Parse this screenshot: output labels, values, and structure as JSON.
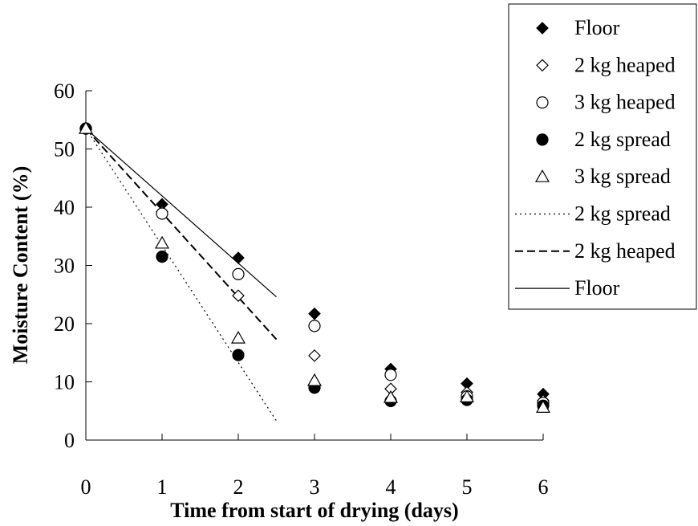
{
  "chart_data": {
    "type": "scatter",
    "title": "",
    "xlabel": "Time from start of drying (days)",
    "ylabel": "Moisture Content (%)",
    "xlim": [
      0,
      6
    ],
    "ylim": [
      0,
      65
    ],
    "xticks": [
      "0",
      "1",
      "2",
      "3",
      "4",
      "5",
      "6"
    ],
    "yticks": [
      "0",
      "10",
      "20",
      "30",
      "40",
      "50",
      "60"
    ],
    "grid": false,
    "legend_position": "top-right",
    "series": [
      {
        "name": "Floor",
        "kind": "points",
        "marker": "diamond-filled",
        "points": [
          [
            0,
            53.5
          ],
          [
            1,
            40.5
          ],
          [
            2,
            31.3
          ],
          [
            3,
            21.7
          ],
          [
            4,
            12.2
          ],
          [
            5,
            9.7
          ],
          [
            6,
            7.9
          ]
        ]
      },
      {
        "name": "2 kg heaped",
        "kind": "points",
        "marker": "diamond-open",
        "points": [
          [
            0,
            53.5
          ],
          [
            1,
            39.2
          ],
          [
            2,
            24.8
          ],
          [
            3,
            14.5
          ],
          [
            4,
            8.8
          ],
          [
            5,
            8.2
          ],
          [
            6,
            6.8
          ]
        ]
      },
      {
        "name": "3 kg heaped",
        "kind": "points",
        "marker": "circle-open",
        "points": [
          [
            0,
            53.5
          ],
          [
            1,
            38.9
          ],
          [
            2,
            28.5
          ],
          [
            3,
            19.6
          ],
          [
            4,
            11.2
          ],
          [
            5,
            7.5
          ],
          [
            6,
            6.4
          ]
        ]
      },
      {
        "name": "2 kg spread",
        "kind": "points",
        "marker": "circle-filled",
        "points": [
          [
            0,
            53.5
          ],
          [
            1,
            31.5
          ],
          [
            2,
            14.6
          ],
          [
            3,
            9.0
          ],
          [
            4,
            6.7
          ],
          [
            5,
            6.9
          ],
          [
            6,
            5.9
          ]
        ]
      },
      {
        "name": "3 kg spread",
        "kind": "points",
        "marker": "triangle-open",
        "points": [
          [
            0,
            53.5
          ],
          [
            1,
            33.8
          ],
          [
            2,
            17.5
          ],
          [
            3,
            10.2
          ],
          [
            4,
            7.3
          ],
          [
            5,
            7.4
          ],
          [
            6,
            5.6
          ]
        ]
      },
      {
        "name": "2 kg spread",
        "kind": "line",
        "dash": "dotted",
        "points": [
          [
            0,
            53.5
          ],
          [
            2.5,
            3.3
          ]
        ]
      },
      {
        "name": "2 kg heaped",
        "kind": "line",
        "dash": "dashed",
        "points": [
          [
            0,
            53.5
          ],
          [
            2.5,
            17.3
          ]
        ]
      },
      {
        "name": "Floor",
        "kind": "line",
        "dash": "solid",
        "points": [
          [
            0,
            53.5
          ],
          [
            2.5,
            24.6
          ]
        ]
      }
    ]
  }
}
